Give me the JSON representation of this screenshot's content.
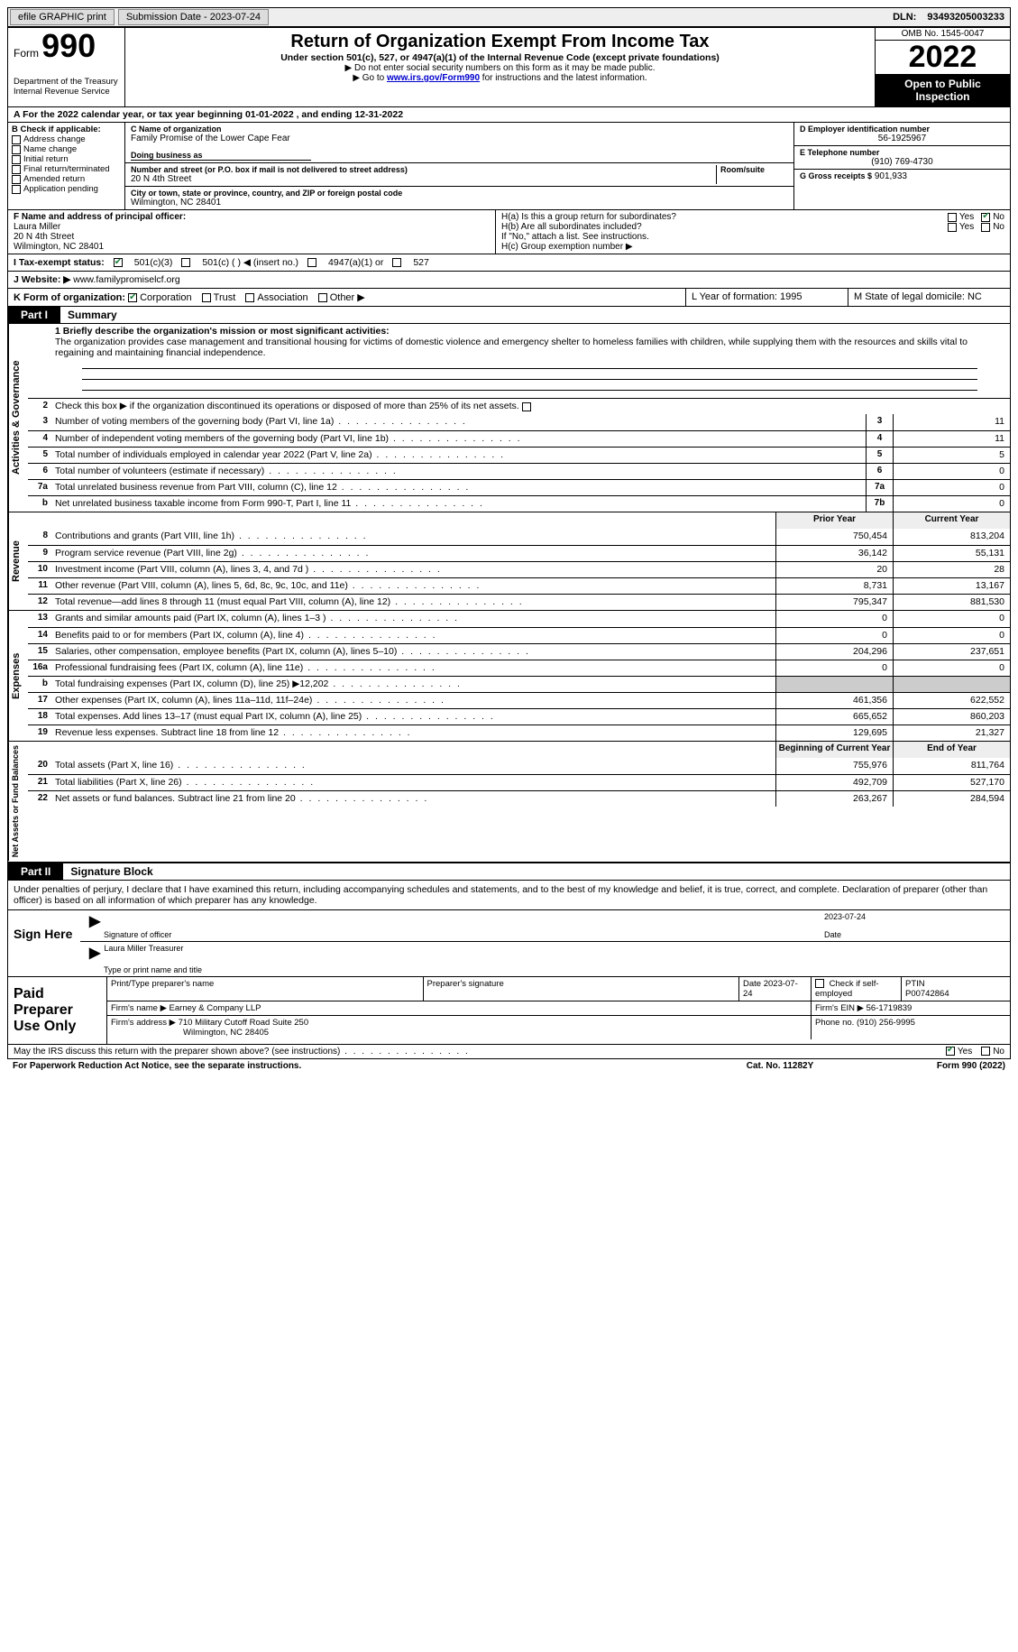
{
  "topbar": {
    "efile": "efile GRAPHIC print",
    "submission": "Submission Date - 2023-07-24",
    "dln_label": "DLN:",
    "dln": "93493205003233"
  },
  "header": {
    "form_word": "Form",
    "form_num": "990",
    "dept": "Department of the Treasury",
    "irs": "Internal Revenue Service",
    "title": "Return of Organization Exempt From Income Tax",
    "sub1": "Under section 501(c), 527, or 4947(a)(1) of the Internal Revenue Code (except private foundations)",
    "sub2": "▶ Do not enter social security numbers on this form as it may be made public.",
    "sub3_a": "▶ Go to ",
    "sub3_link": "www.irs.gov/Form990",
    "sub3_b": " for instructions and the latest information.",
    "omb": "OMB No. 1545-0047",
    "year": "2022",
    "open": "Open to Public Inspection"
  },
  "row_a": "A For the 2022 calendar year, or tax year beginning 01-01-2022    , and ending 12-31-2022",
  "col_b": {
    "head": "B Check if applicable:",
    "items": [
      "Address change",
      "Name change",
      "Initial return",
      "Final return/terminated",
      "Amended return",
      "Application pending"
    ]
  },
  "col_c": {
    "name_label": "C Name of organization",
    "name": "Family Promise of the Lower Cape Fear",
    "dba_label": "Doing business as",
    "dba": "",
    "street_label": "Number and street (or P.O. box if mail is not delivered to street address)",
    "room_label": "Room/suite",
    "street": "20 N 4th Street",
    "city_label": "City or town, state or province, country, and ZIP or foreign postal code",
    "city": "Wilmington, NC  28401"
  },
  "col_d": {
    "ein_label": "D Employer identification number",
    "ein": "56-1925967",
    "tel_label": "E Telephone number",
    "tel": "(910) 769-4730",
    "gross_label": "G Gross receipts $",
    "gross": "901,933"
  },
  "row_f": {
    "label": "F Name and address of principal officer:",
    "name": "Laura Miller",
    "street": "20 N 4th Street",
    "city": "Wilmington, NC  28401"
  },
  "row_h": {
    "ha": "H(a)  Is this a group return for subordinates?",
    "hb": "H(b)  Are all subordinates included?",
    "hb_note": "If \"No,\" attach a list. See instructions.",
    "hc": "H(c)  Group exemption number ▶"
  },
  "row_i": {
    "label": "I   Tax-exempt status:",
    "o1": "501(c)(3)",
    "o2": "501(c) (  ) ◀ (insert no.)",
    "o3": "4947(a)(1) or",
    "o4": "527"
  },
  "row_j": {
    "label": "J  Website: ▶",
    "val": "www.familypromiselcf.org"
  },
  "row_k": {
    "label": "K Form of organization:",
    "corp": "Corporation",
    "trust": "Trust",
    "assoc": "Association",
    "other": "Other ▶",
    "l": "L Year of formation: 1995",
    "m": "M State of legal domicile: NC"
  },
  "part1": {
    "tab": "Part I",
    "title": "Summary"
  },
  "mission_label": "1  Briefly describe the organization's mission or most significant activities:",
  "mission": "The organization provides case management and transitional housing for victims of domestic violence and emergency shelter to homeless families with children, while supplying them with the resources and skills vital to regaining and maintaining financial independence.",
  "line2": "Check this box ▶      if the organization discontinued its operations or disposed of more than 25% of its net assets.",
  "gov_rows": [
    {
      "n": "3",
      "label": "Number of voting members of the governing body (Part VI, line 1a)",
      "box": "3",
      "val": "11"
    },
    {
      "n": "4",
      "label": "Number of independent voting members of the governing body (Part VI, line 1b)",
      "box": "4",
      "val": "11"
    },
    {
      "n": "5",
      "label": "Total number of individuals employed in calendar year 2022 (Part V, line 2a)",
      "box": "5",
      "val": "5"
    },
    {
      "n": "6",
      "label": "Total number of volunteers (estimate if necessary)",
      "box": "6",
      "val": "0"
    },
    {
      "n": "7a",
      "label": "Total unrelated business revenue from Part VIII, column (C), line 12",
      "box": "7a",
      "val": "0"
    },
    {
      "n": "b",
      "label": "Net unrelated business taxable income from Form 990-T, Part I, line 11",
      "box": "7b",
      "val": "0"
    }
  ],
  "col_headers": {
    "prior": "Prior Year",
    "current": "Current Year"
  },
  "revenue_rows": [
    {
      "n": "8",
      "label": "Contributions and grants (Part VIII, line 1h)",
      "prior": "750,454",
      "cur": "813,204"
    },
    {
      "n": "9",
      "label": "Program service revenue (Part VIII, line 2g)",
      "prior": "36,142",
      "cur": "55,131"
    },
    {
      "n": "10",
      "label": "Investment income (Part VIII, column (A), lines 3, 4, and 7d )",
      "prior": "20",
      "cur": "28"
    },
    {
      "n": "11",
      "label": "Other revenue (Part VIII, column (A), lines 5, 6d, 8c, 9c, 10c, and 11e)",
      "prior": "8,731",
      "cur": "13,167"
    },
    {
      "n": "12",
      "label": "Total revenue—add lines 8 through 11 (must equal Part VIII, column (A), line 12)",
      "prior": "795,347",
      "cur": "881,530"
    }
  ],
  "expense_rows": [
    {
      "n": "13",
      "label": "Grants and similar amounts paid (Part IX, column (A), lines 1–3 )",
      "prior": "0",
      "cur": "0"
    },
    {
      "n": "14",
      "label": "Benefits paid to or for members (Part IX, column (A), line 4)",
      "prior": "0",
      "cur": "0"
    },
    {
      "n": "15",
      "label": "Salaries, other compensation, employee benefits (Part IX, column (A), lines 5–10)",
      "prior": "204,296",
      "cur": "237,651"
    },
    {
      "n": "16a",
      "label": "Professional fundraising fees (Part IX, column (A), line 11e)",
      "prior": "0",
      "cur": "0"
    },
    {
      "n": "b",
      "label": "Total fundraising expenses (Part IX, column (D), line 25) ▶12,202",
      "prior": "",
      "cur": "",
      "grey": true
    },
    {
      "n": "17",
      "label": "Other expenses (Part IX, column (A), lines 11a–11d, 11f–24e)",
      "prior": "461,356",
      "cur": "622,552"
    },
    {
      "n": "18",
      "label": "Total expenses. Add lines 13–17 (must equal Part IX, column (A), line 25)",
      "prior": "665,652",
      "cur": "860,203"
    },
    {
      "n": "19",
      "label": "Revenue less expenses. Subtract line 18 from line 12",
      "prior": "129,695",
      "cur": "21,327"
    }
  ],
  "net_headers": {
    "begin": "Beginning of Current Year",
    "end": "End of Year"
  },
  "net_rows": [
    {
      "n": "20",
      "label": "Total assets (Part X, line 16)",
      "prior": "755,976",
      "cur": "811,764"
    },
    {
      "n": "21",
      "label": "Total liabilities (Part X, line 26)",
      "prior": "492,709",
      "cur": "527,170"
    },
    {
      "n": "22",
      "label": "Net assets or fund balances. Subtract line 21 from line 20",
      "prior": "263,267",
      "cur": "284,594"
    }
  ],
  "part2": {
    "tab": "Part II",
    "title": "Signature Block"
  },
  "penalties": "Under penalties of perjury, I declare that I have examined this return, including accompanying schedules and statements, and to the best of my knowledge and belief, it is true, correct, and complete. Declaration of preparer (other than officer) is based on all information of which preparer has any knowledge.",
  "sign": {
    "here": "Sign Here",
    "sig_label": "Signature of officer",
    "date": "2023-07-24",
    "date_label": "Date",
    "name": "Laura Miller Treasurer",
    "name_label": "Type or print name and title"
  },
  "prep": {
    "left": "Paid Preparer Use Only",
    "name_label": "Print/Type preparer's name",
    "sig_label": "Preparer's signature",
    "date_label": "Date",
    "date": "2023-07-24",
    "self_label": "Check        if self-employed",
    "ptin_label": "PTIN",
    "ptin": "P00742864",
    "firm_name_label": "Firm's name      ▶",
    "firm_name": "Earney & Company LLP",
    "firm_ein_label": "Firm's EIN ▶",
    "firm_ein": "56-1719839",
    "firm_addr_label": "Firm's address ▶",
    "firm_addr1": "710 Military Cutoff Road Suite 250",
    "firm_addr2": "Wilmington, NC  28405",
    "phone_label": "Phone no.",
    "phone": "(910) 256-9995"
  },
  "may_irs": "May the IRS discuss this return with the preparer shown above? (see instructions)",
  "footer": {
    "left": "For Paperwork Reduction Act Notice, see the separate instructions.",
    "mid": "Cat. No. 11282Y",
    "right": "Form 990 (2022)"
  },
  "vert": {
    "gov": "Activities & Governance",
    "rev": "Revenue",
    "exp": "Expenses",
    "net": "Net Assets or Fund Balances"
  }
}
